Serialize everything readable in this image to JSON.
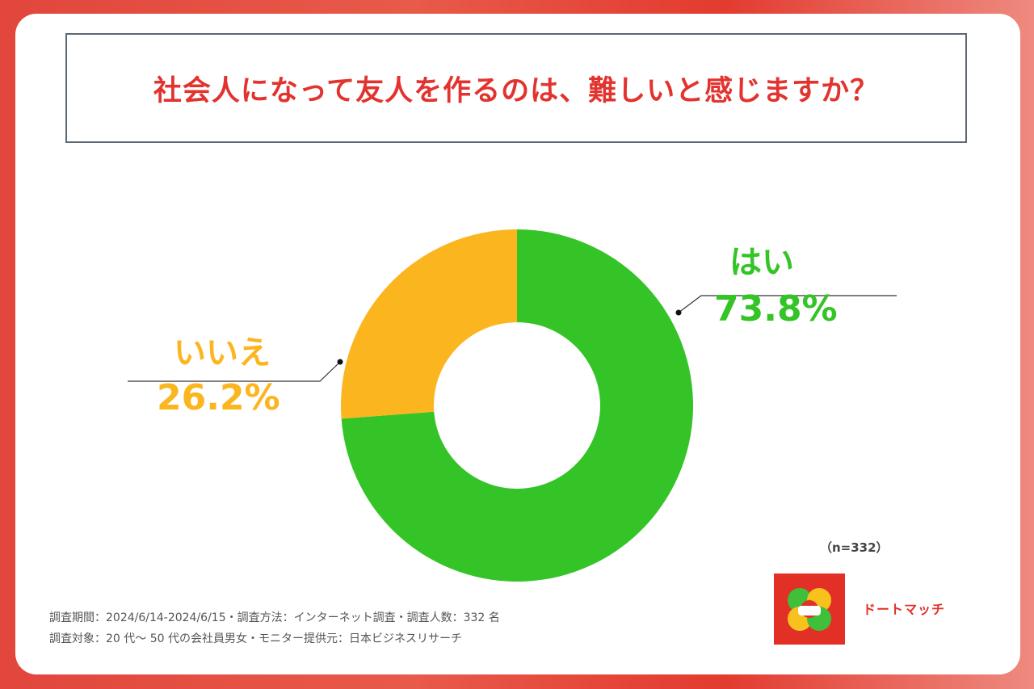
{
  "title": "社会人になって友人を作るのは、難しいと感じますか？",
  "chart_data": {
    "type": "pie",
    "donut": true,
    "title": "社会人になって友人を作るのは、難しいと感じますか？",
    "slices": [
      {
        "label": "はい",
        "value": 73.8,
        "display": "73.8%",
        "color": "#35c428"
      },
      {
        "label": "いいえ",
        "value": 26.2,
        "display": "26.2%",
        "color": "#fbb51f"
      }
    ],
    "n_note": "（n=332）"
  },
  "footer": {
    "line1": "調査期間：2024/6/14-2024/6/15・調査方法：インターネット調査・調査人数：332 名",
    "line2": "調査対象：20 代～ 50 代の会社員男女・モニター提供元：日本ビジネスリサーチ"
  },
  "logo": {
    "brand": "ドートマッチ"
  },
  "colors": {
    "accent": "#e2332e",
    "yes": "#35c428",
    "no": "#fbb51f"
  }
}
